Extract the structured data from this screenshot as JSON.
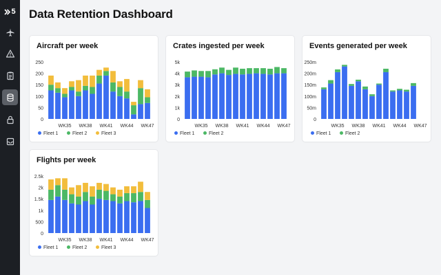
{
  "app": {
    "logo_text": "5",
    "page_title": "Data Retention Dashboard"
  },
  "sidebar": {
    "items": [
      {
        "icon": "airplane-icon",
        "active": false
      },
      {
        "icon": "warning-icon",
        "active": false
      },
      {
        "icon": "clipboard-icon",
        "active": false
      },
      {
        "icon": "database-icon",
        "active": true
      },
      {
        "icon": "lock-icon",
        "active": false
      },
      {
        "icon": "archive-icon",
        "active": false
      }
    ]
  },
  "colors": {
    "fleet1": "#3b6ef0",
    "fleet2": "#4cb865",
    "fleet3": "#f2bd3c",
    "sidebar_bg": "#1c1f24",
    "page_bg": "#f3f4f6"
  },
  "cards": {
    "aircraft": {
      "title": "Aircraft per week"
    },
    "crates": {
      "title": "Crates ingested per week"
    },
    "events": {
      "title": "Events generated per week"
    },
    "flights": {
      "title": "Flights per week"
    }
  },
  "chart_data": [
    {
      "id": "aircraft",
      "type": "bar",
      "stacked": true,
      "title": "Aircraft per week",
      "categories": [
        "WK33",
        "WK34",
        "WK35",
        "WK36",
        "WK37",
        "WK38",
        "WK39",
        "WK40",
        "WK41",
        "WK42",
        "WK43",
        "WK44",
        "WK45",
        "WK46",
        "WK47"
      ],
      "x_tick_labels": [
        "WK35",
        "WK38",
        "WK41",
        "WK44",
        "WK47"
      ],
      "y_ticks": [
        "0",
        "50",
        "100",
        "150",
        "200",
        "250"
      ],
      "ylim": [
        0,
        250
      ],
      "series": [
        {
          "name": "Fleet 1",
          "color": "#3b6ef0",
          "values": [
            125,
            115,
            95,
            125,
            100,
            125,
            110,
            155,
            190,
            120,
            100,
            90,
            20,
            65,
            70
          ]
        },
        {
          "name": "Fleet 2",
          "color": "#4cb865",
          "values": [
            25,
            20,
            15,
            15,
            20,
            20,
            30,
            35,
            20,
            40,
            40,
            30,
            40,
            70,
            25
          ]
        },
        {
          "name": "Fleet 3",
          "color": "#f2bd3c",
          "values": [
            40,
            25,
            25,
            25,
            50,
            45,
            50,
            25,
            15,
            50,
            25,
            55,
            15,
            35,
            35
          ]
        }
      ],
      "legend": [
        "Fleet 1",
        "Fleet 2",
        "Fleet 3"
      ],
      "legend_position": "bottom-left"
    },
    {
      "id": "crates",
      "type": "bar",
      "stacked": true,
      "title": "Crates ingested per week",
      "categories": [
        "WK33",
        "WK34",
        "WK35",
        "WK36",
        "WK37",
        "WK38",
        "WK39",
        "WK40",
        "WK41",
        "WK42",
        "WK43",
        "WK44",
        "WK45",
        "WK46",
        "WK47"
      ],
      "x_tick_labels": [
        "WK35",
        "WK38",
        "WK41",
        "WK44",
        "WK47"
      ],
      "y_ticks": [
        "0",
        "1k",
        "2k",
        "3k",
        "4k",
        "5k"
      ],
      "ylim": [
        0,
        5000
      ],
      "series": [
        {
          "name": "Fleet 1",
          "color": "#3b6ef0",
          "values": [
            3650,
            3700,
            3700,
            3650,
            3900,
            4000,
            3850,
            3950,
            3900,
            3950,
            4000,
            3950,
            3900,
            4000,
            4000
          ]
        },
        {
          "name": "Fleet 2",
          "color": "#4cb865",
          "values": [
            500,
            550,
            500,
            550,
            450,
            500,
            450,
            550,
            500,
            500,
            450,
            500,
            500,
            550,
            450
          ]
        }
      ],
      "legend": [
        "Fleet 1",
        "Fleet 2"
      ],
      "legend_position": "bottom-left"
    },
    {
      "id": "events",
      "type": "bar",
      "stacked": true,
      "title": "Events generated per week",
      "categories": [
        "WK33",
        "WK34",
        "WK35",
        "WK36",
        "WK37",
        "WK38",
        "WK39",
        "WK40",
        "WK41",
        "WK42",
        "WK43",
        "WK44",
        "WK45",
        "WK46",
        "WK47"
      ],
      "x_tick_labels": [
        "WK35",
        "WK38",
        "WK41",
        "WK44",
        "WK47"
      ],
      "y_ticks": [
        "0",
        "50m",
        "100m",
        "150m",
        "200m",
        "250m"
      ],
      "ylim": [
        0,
        250
      ],
      "series": [
        {
          "name": "Fleet 1",
          "color": "#3b6ef0",
          "values": [
            130,
            155,
            205,
            230,
            145,
            165,
            130,
            100,
            150,
            205,
            120,
            125,
            120,
            145,
            0
          ]
        },
        {
          "name": "Fleet 2",
          "color": "#4cb865",
          "values": [
            8,
            15,
            12,
            7,
            8,
            7,
            12,
            8,
            5,
            15,
            5,
            7,
            8,
            12,
            0
          ]
        }
      ],
      "legend": [
        "Fleet 1",
        "Fleet 2"
      ],
      "legend_position": "bottom-left"
    },
    {
      "id": "flights",
      "type": "bar",
      "stacked": true,
      "title": "Flights per week",
      "categories": [
        "WK33",
        "WK34",
        "WK35",
        "WK36",
        "WK37",
        "WK38",
        "WK39",
        "WK40",
        "WK41",
        "WK42",
        "WK43",
        "WK44",
        "WK45",
        "WK46",
        "WK47"
      ],
      "x_tick_labels": [
        "WK35",
        "WK38",
        "WK41",
        "WK44",
        "WK47"
      ],
      "y_ticks": [
        "0",
        "500",
        "1k",
        "1.5k",
        "2k",
        "2.5k"
      ],
      "ylim": [
        0,
        2500
      ],
      "series": [
        {
          "name": "Fleet 1",
          "color": "#3b6ef0",
          "values": [
            1450,
            1600,
            1450,
            1300,
            1250,
            1400,
            1250,
            1500,
            1450,
            1400,
            1300,
            1400,
            1350,
            1400,
            1100
          ]
        },
        {
          "name": "Fleet 2",
          "color": "#4cb865",
          "values": [
            450,
            500,
            450,
            400,
            350,
            400,
            350,
            400,
            400,
            300,
            300,
            350,
            400,
            400,
            350
          ]
        },
        {
          "name": "Fleet 3",
          "color": "#f2bd3c",
          "values": [
            450,
            300,
            500,
            300,
            500,
            400,
            450,
            300,
            300,
            300,
            300,
            300,
            300,
            450,
            350
          ]
        }
      ],
      "legend": [
        "Fleet 1",
        "Fleet 2",
        "Fleet 3"
      ],
      "legend_position": "bottom-left"
    }
  ]
}
